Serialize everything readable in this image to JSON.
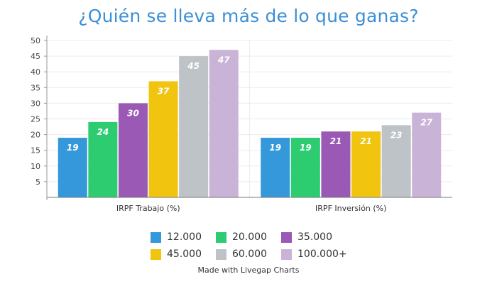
{
  "chart_data": {
    "type": "bar",
    "title": "¿Quién se lleva más de lo que ganas?",
    "categories": [
      "IRPF Trabajo (%)",
      "IRPF Inversión (%)"
    ],
    "series": [
      {
        "name": "12.000",
        "color": "#3498db",
        "values": [
          19,
          19
        ]
      },
      {
        "name": "20.000",
        "color": "#2ecc71",
        "values": [
          24,
          19
        ]
      },
      {
        "name": "35.000",
        "color": "#9b59b6",
        "values": [
          30,
          21
        ]
      },
      {
        "name": "45.000",
        "color": "#f1c40f",
        "values": [
          37,
          21
        ]
      },
      {
        "name": "60.000",
        "color": "#bdc3c7",
        "values": [
          45,
          23
        ]
      },
      {
        "name": "100.000+",
        "color": "#c9b3d6",
        "values": [
          47,
          27
        ]
      }
    ],
    "yticks": [
      5,
      10,
      15,
      20,
      25,
      30,
      35,
      40,
      45,
      50
    ],
    "ylim": [
      0,
      50
    ],
    "grid": true,
    "legend_position": "bottom",
    "xlabel": "",
    "ylabel": ""
  },
  "credit": "Made with Livegap Charts"
}
